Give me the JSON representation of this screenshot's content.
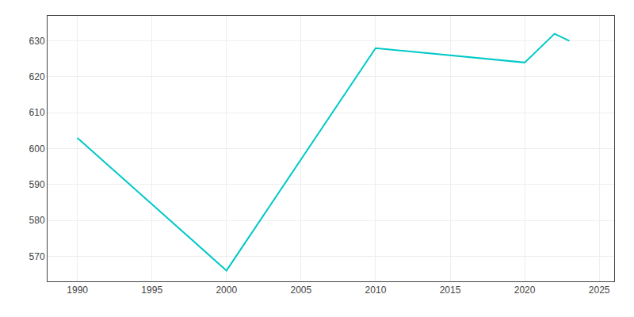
{
  "chart_data": {
    "type": "line",
    "x": [
      1990,
      2000,
      2010,
      2015,
      2020,
      2022,
      2023
    ],
    "values": [
      603,
      566,
      628,
      626,
      624,
      632,
      630
    ],
    "color": "#00C8C8",
    "xlim": [
      1988,
      2026
    ],
    "ylim": [
      563,
      637
    ],
    "xticks": [
      1990,
      1995,
      2000,
      2005,
      2010,
      2015,
      2020,
      2025
    ],
    "yticks": [
      570,
      580,
      590,
      600,
      610,
      620,
      630
    ],
    "grid": true
  }
}
